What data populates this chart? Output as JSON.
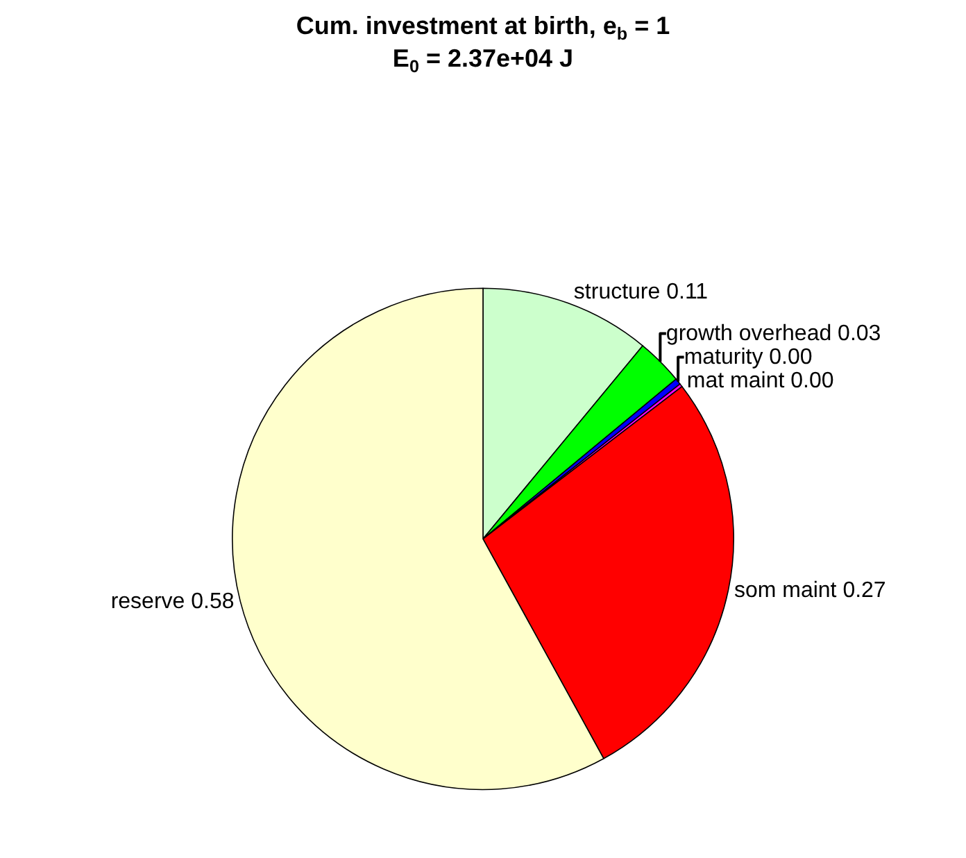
{
  "chart_data": {
    "type": "pie",
    "title": "Cum. investment at birth, e$_{b}$ = 1",
    "subtitle": "E$_{0}$ = 2.37e+04 J",
    "categories": [
      "structure",
      "growth overhead",
      "maturity",
      "mat maint",
      "som maint",
      "reserve"
    ],
    "values": [
      0.11,
      0.03,
      0.004,
      0.002,
      0.274,
      0.58
    ],
    "value_labels": [
      "0.11",
      "0.03",
      "0.00",
      "0.00",
      "0.27",
      "0.58"
    ],
    "colors": [
      "#ccffcc",
      "#00ff00",
      "#0000ff",
      "#ff00ff",
      "#ff0000",
      "#ffffcc"
    ],
    "legend": false
  }
}
